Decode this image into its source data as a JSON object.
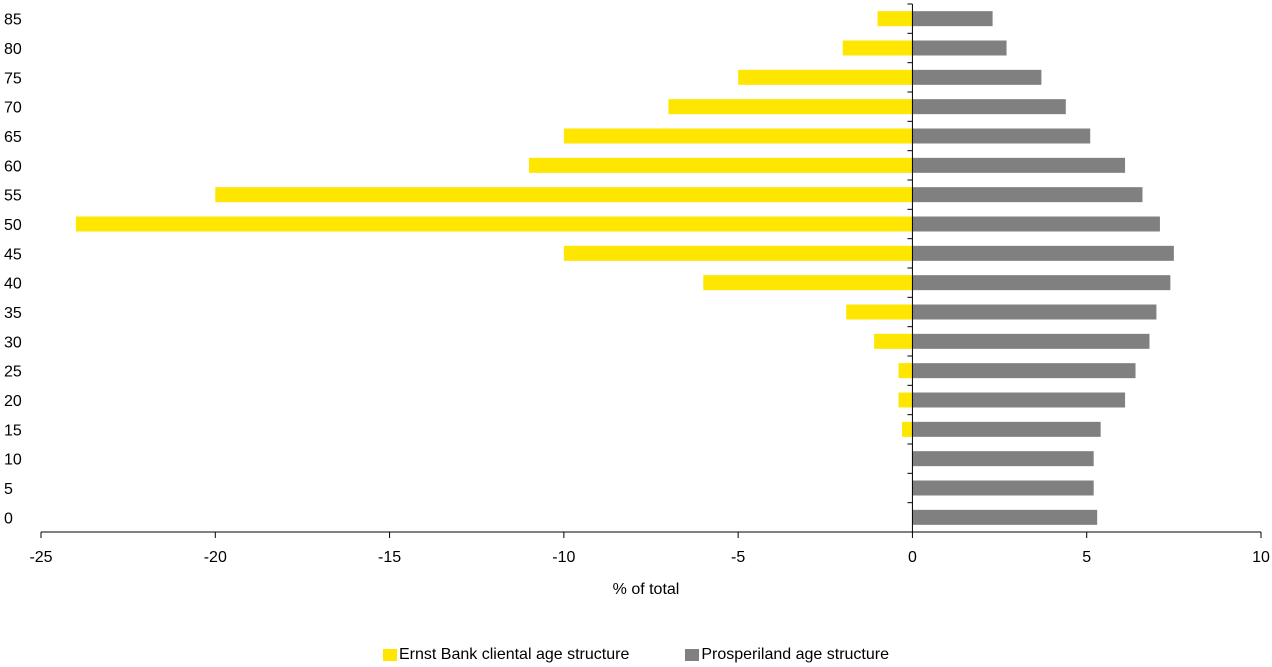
{
  "chart_data": {
    "type": "bar",
    "orientation": "horizontal",
    "categories": [
      "0",
      "5",
      "10",
      "15",
      "20",
      "25",
      "30",
      "35",
      "40",
      "45",
      "50",
      "55",
      "60",
      "65",
      "70",
      "75",
      "80",
      "85"
    ],
    "series": [
      {
        "name": "Ernst Bank cliental age structure",
        "color": "#FFE600",
        "values": [
          0,
          0,
          0,
          -0.3,
          -0.4,
          -0.4,
          -1.1,
          -1.9,
          -6,
          -10,
          -24,
          -20,
          -11,
          -10,
          -7,
          -5,
          -2,
          -1
        ]
      },
      {
        "name": "Prosperiland age structure",
        "color": "#808080",
        "values": [
          5.3,
          5.2,
          5.2,
          5.4,
          6.1,
          6.4,
          6.8,
          7.0,
          7.4,
          7.5,
          7.1,
          6.6,
          6.1,
          5.1,
          4.4,
          3.7,
          2.7,
          2.3
        ]
      }
    ],
    "xlabel": "% of total",
    "ylabel": "",
    "xlim": [
      -25,
      10
    ],
    "xticks": [
      "-25",
      "-20",
      "-15",
      "-10",
      "-5",
      "0",
      "5",
      "10"
    ],
    "grid": false,
    "legend_position": "bottom"
  }
}
